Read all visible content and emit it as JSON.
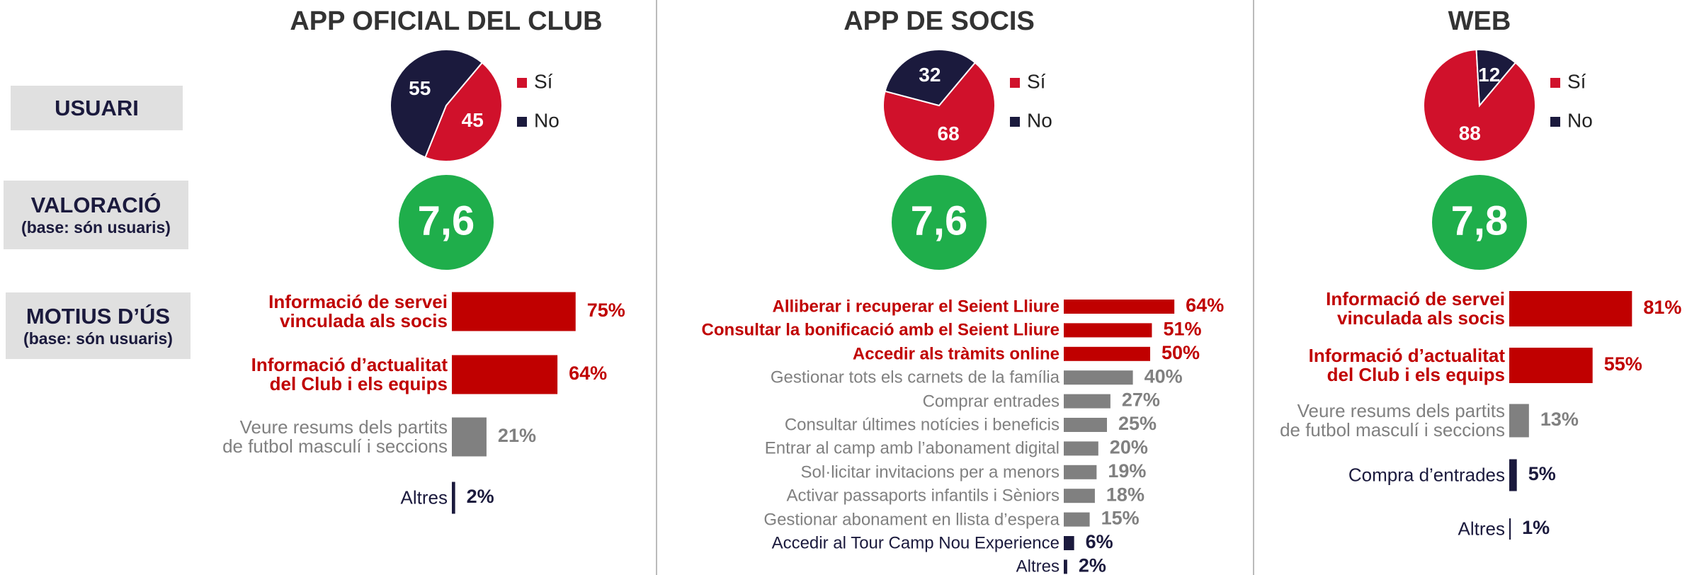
{
  "row_labels": [
    {
      "title": "USUARI"
    },
    {
      "title": "VALORACIÓ",
      "note": "(base: són usuaris)"
    },
    {
      "title": "MOTIUS D’ÚS",
      "note": "(base: són usuaris)"
    }
  ],
  "scores": [
    "7,6",
    "7,6",
    "7,8"
  ],
  "chart_data": [
    {
      "type": "pie",
      "title": "APP OFICIAL DEL CLUB",
      "categories": [
        "Sí",
        "No"
      ],
      "values": [
        45,
        55
      ],
      "colors": [
        "#d0112b",
        "#1b1a3d"
      ]
    },
    {
      "type": "pie",
      "title": "APP DE SOCIS",
      "categories": [
        "Sí",
        "No"
      ],
      "values": [
        68,
        32
      ],
      "colors": [
        "#d0112b",
        "#1b1a3d"
      ]
    },
    {
      "type": "pie",
      "title": "WEB",
      "categories": [
        "Sí",
        "No"
      ],
      "values": [
        88,
        12
      ],
      "colors": [
        "#d0112b",
        "#1b1a3d"
      ]
    },
    {
      "type": "bar",
      "categories": [
        "Informació de servei\nvinculada als socis",
        "Informació d’actualitat\ndel Club i els equips",
        "Veure resums dels partits\nde futbol masculí i seccions",
        "Altres"
      ],
      "values": [
        75,
        64,
        21,
        2
      ],
      "value_labels": [
        "75%",
        "64%",
        "21%",
        "2%"
      ],
      "colors": [
        "#c00000",
        "#c00000",
        "#808080",
        "#1b1a3d"
      ]
    },
    {
      "type": "bar",
      "categories": [
        "Alliberar i recuperar el Seient Lliure",
        "Consultar la bonificació amb el Seient Lliure",
        "Accedir als tràmits online",
        "Gestionar tots els carnets  de la família",
        "Comprar entrades",
        "Consultar últimes notícies i beneficis",
        "Entrar al camp amb l’abonament digital",
        "Sol·licitar invitacions per a menors",
        "Activar passaports infantils i Sèniors",
        "Gestionar abonament en llista d’espera",
        "Accedir al Tour Camp Nou Experience",
        "Altres"
      ],
      "values": [
        64,
        51,
        50,
        40,
        27,
        25,
        20,
        19,
        18,
        15,
        6,
        2
      ],
      "value_labels": [
        "64%",
        "51%",
        "50%",
        "40%",
        "27%",
        "25%",
        "20%",
        "19%",
        "18%",
        "15%",
        "6%",
        "2%"
      ],
      "colors": [
        "#c00000",
        "#c00000",
        "#c00000",
        "#808080",
        "#808080",
        "#808080",
        "#808080",
        "#808080",
        "#808080",
        "#808080",
        "#1b1a3d",
        "#1b1a3d"
      ]
    },
    {
      "type": "bar",
      "categories": [
        "Informació de servei\nvinculada als socis",
        "Informació d’actualitat\ndel Club i els equips",
        "Veure resums dels partits\nde futbol masculí i seccions",
        "Compra d’entrades",
        "Altres"
      ],
      "values": [
        81,
        55,
        13,
        5,
        1
      ],
      "value_labels": [
        "81%",
        "55%",
        "13%",
        "5%",
        "1%"
      ],
      "colors": [
        "#c00000",
        "#c00000",
        "#808080",
        "#1b1a3d",
        "#1b1a3d"
      ]
    }
  ]
}
